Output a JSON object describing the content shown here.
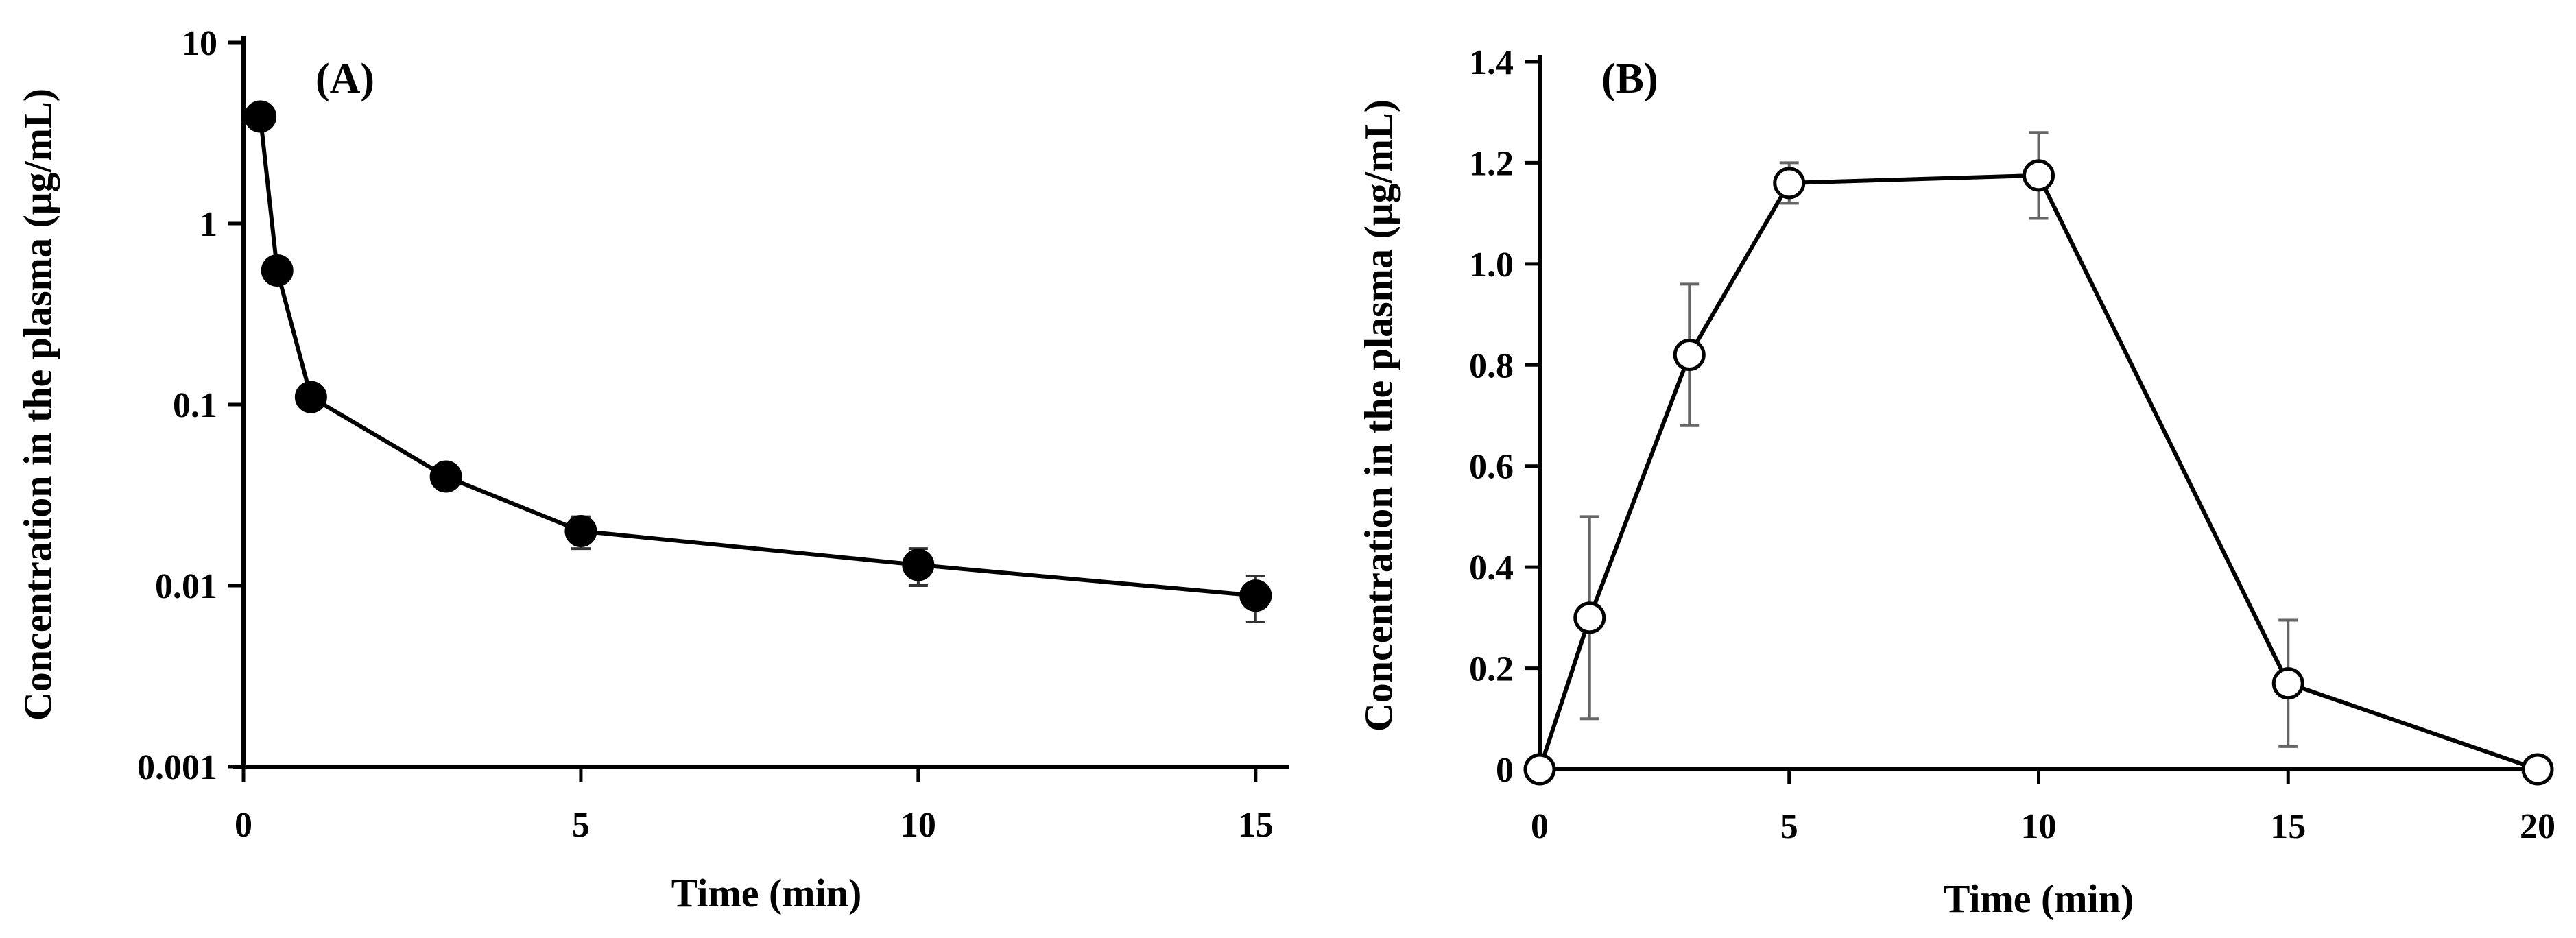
{
  "chart_data": [
    {
      "panel": "(A)",
      "type": "line",
      "yscale": "log",
      "xlabel": "Time (min)",
      "ylabel": "Concentration in the plasma (μg/mL)",
      "xlim": [
        0,
        15.5
      ],
      "ylim": [
        0.001,
        10
      ],
      "xticks": [
        0,
        5,
        10,
        15
      ],
      "xtick_labels": [
        "0",
        "5",
        "10",
        "15"
      ],
      "yticks": [
        0.001,
        0.01,
        0.1,
        1,
        10
      ],
      "ytick_labels": [
        "0.001",
        "0.01",
        "0.1",
        "1",
        "10"
      ],
      "marker": "filled-circle",
      "x": [
        0.25,
        0.5,
        1,
        3,
        5,
        10,
        15
      ],
      "y": [
        3.9,
        0.55,
        0.11,
        0.04,
        0.02,
        0.013,
        0.0088
      ],
      "err": [
        0,
        0,
        0,
        0,
        0.004,
        0.003,
        0.0025
      ]
    },
    {
      "panel": "(B)",
      "type": "line",
      "yscale": "linear",
      "xlabel": "Time (min)",
      "ylabel": "Concentration in the plasma (μg/mL)",
      "xlim": [
        0,
        20
      ],
      "ylim": [
        0,
        1.4
      ],
      "xticks": [
        0,
        5,
        10,
        15,
        20
      ],
      "xtick_labels": [
        "0",
        "5",
        "10",
        "15",
        "20"
      ],
      "yticks": [
        0,
        0.2,
        0.4,
        0.6,
        0.8,
        1.0,
        1.2,
        1.4
      ],
      "ytick_labels": [
        "0",
        "0.2",
        "0.4",
        "0.6",
        "0.8",
        "1.0",
        "1.2",
        "1.4"
      ],
      "marker": "open-circle",
      "x": [
        0,
        1,
        3,
        5,
        10,
        15,
        20
      ],
      "y": [
        0,
        0.3,
        0.82,
        1.16,
        1.175,
        0.17,
        0
      ],
      "err": [
        0,
        0.2,
        0.14,
        0.04,
        0.085,
        0.125,
        0
      ]
    }
  ]
}
